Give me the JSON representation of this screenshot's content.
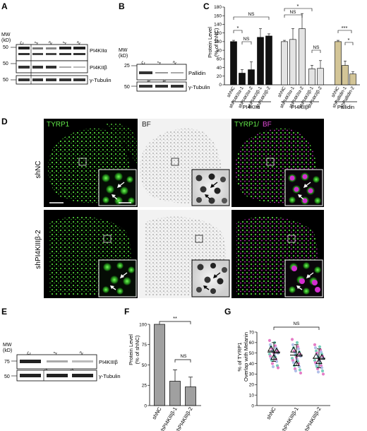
{
  "panels": {
    "A": {
      "letter": "A",
      "mw_label": [
        "MW",
        "(kD)"
      ],
      "lanes": [
        "shNC",
        "shPI4KIIα-1",
        "shPI4KIIα-2",
        "shPI4KIIβ-1",
        "shPI4KIIβ-2"
      ],
      "markers": [
        "50",
        "50",
        "50"
      ],
      "bands": [
        "PI4KIIα",
        "PI4KIIβ",
        "γ-Tubulin"
      ]
    },
    "B": {
      "letter": "B",
      "mw_label": [
        "MW",
        "(kD)"
      ],
      "lanes": [
        "shNC",
        "shPallidin-1",
        "shPallidin-2"
      ],
      "markers": [
        "25",
        "50"
      ],
      "bands": [
        "Pallidin",
        "γ-Tubulin"
      ]
    },
    "C": {
      "letter": "C",
      "ylabel": [
        "Protein Level",
        "(% of shNC)"
      ],
      "yticks": [
        "0",
        "20",
        "40",
        "60",
        "80",
        "100",
        "120",
        "140",
        "160",
        "180"
      ],
      "group_labels": [
        "PI4KIIα",
        "PI4KIIβ",
        "Pallidin"
      ],
      "sig": [
        "*",
        "NS",
        "NS",
        "NS",
        "*",
        "NS",
        "***",
        "*"
      ]
    },
    "D": {
      "letter": "D",
      "col_labels": [
        "TYRP1",
        "BF",
        "TYRP1/",
        "BF"
      ],
      "row_labels": [
        "shNC",
        "shPI4KIIIβ-2"
      ]
    },
    "E": {
      "letter": "E",
      "mw_label": [
        "MW",
        "(kD)"
      ],
      "lanes": [
        "shNC",
        "shPI4KIIIβ-1",
        "shPI4KIIIβ-2"
      ],
      "markers": [
        "75",
        "50"
      ],
      "bands": [
        "PI4KIIIβ",
        "γ-Tubulin"
      ]
    },
    "F": {
      "letter": "F",
      "ylabel": [
        "Protein Level",
        "(% of shNC)"
      ],
      "yticks": [
        "0",
        "25",
        "50",
        "75",
        "100"
      ],
      "sig": [
        "**",
        "NS"
      ]
    },
    "G": {
      "letter": "G",
      "ylabel": [
        "% of TYRP1",
        "Overlap with Melanin"
      ],
      "yticks": [
        "0",
        "10",
        "20",
        "30",
        "40",
        "50",
        "60",
        "70"
      ],
      "sig": [
        "NS"
      ]
    }
  },
  "chart_data": [
    {
      "type": "bar",
      "panel": "C",
      "categories": [
        "shNC",
        "shPI4KIIα-1",
        "shPI4KIIα-2",
        "shPI4KIIβ-1",
        "shPI4KIIβ-2",
        "shNC",
        "shPI4KIIα-1",
        "shPI4KIIα-2",
        "shPI4KIIβ-1",
        "shPI4KIIβ-2",
        "shNC",
        "shPallidin-1",
        "shPallidin-2"
      ],
      "groups": [
        "PI4KIIα",
        "PI4KIIα",
        "PI4KIIα",
        "PI4KIIα",
        "PI4KIIα",
        "PI4KIIβ",
        "PI4KIIβ",
        "PI4KIIβ",
        "PI4KIIβ",
        "PI4KIIβ",
        "Pallidin",
        "Pallidin",
        "Pallidin"
      ],
      "values": [
        100,
        27,
        35,
        110,
        113,
        100,
        105,
        130,
        37,
        38,
        100,
        45,
        25
      ],
      "errors": [
        3,
        8,
        18,
        20,
        5,
        3,
        25,
        35,
        8,
        18,
        3,
        10,
        5
      ],
      "colors": [
        "#111111",
        "#111111",
        "#111111",
        "#111111",
        "#111111",
        "#e3e3e3",
        "#e3e3e3",
        "#e3e3e3",
        "#e3e3e3",
        "#e3e3e3",
        "#d3c597",
        "#d3c597",
        "#d3c597"
      ],
      "ylim": [
        0,
        180
      ],
      "ylabel": "Protein Level (% of shNC)"
    },
    {
      "type": "bar",
      "panel": "F",
      "categories": [
        "shNC",
        "shPI4KIIIβ-1",
        "shPI4KIIIβ-2"
      ],
      "values": [
        100,
        30,
        23
      ],
      "errors": [
        0,
        14,
        12
      ],
      "ylim": [
        0,
        100
      ],
      "ylabel": "Protein Level (% of shNC)"
    },
    {
      "type": "scatter",
      "panel": "G",
      "categories": [
        "shNC",
        "shPI4KIIIβ-1",
        "shPI4KIIIβ-2"
      ],
      "means": [
        51,
        48,
        45
      ],
      "sd": [
        9,
        10,
        9
      ],
      "triangles": [
        [
          54,
          46,
          52
        ],
        [
          53,
          40,
          49
        ],
        [
          47,
          42,
          46
        ]
      ],
      "points": [
        [
          62,
          60,
          58,
          57,
          56,
          55,
          54,
          53,
          52,
          52,
          51,
          50,
          50,
          49,
          48,
          47,
          46,
          45,
          44,
          43,
          42,
          40,
          38,
          37,
          36
        ],
        [
          63,
          60,
          58,
          56,
          55,
          54,
          52,
          51,
          50,
          49,
          48,
          47,
          46,
          45,
          44,
          43,
          42,
          41,
          40,
          38,
          37,
          35,
          34,
          33,
          31
        ],
        [
          58,
          56,
          55,
          53,
          52,
          51,
          50,
          49,
          48,
          47,
          46,
          45,
          44,
          43,
          42,
          41,
          40,
          39,
          38,
          37,
          36,
          35,
          33,
          32,
          30
        ]
      ],
      "point_colors": [
        "#e26fc1",
        "#69c9b4",
        "#a8b8e6"
      ],
      "ylim": [
        0,
        70
      ],
      "ylabel": "% of TYRP1 Overlap with Melanin"
    }
  ]
}
